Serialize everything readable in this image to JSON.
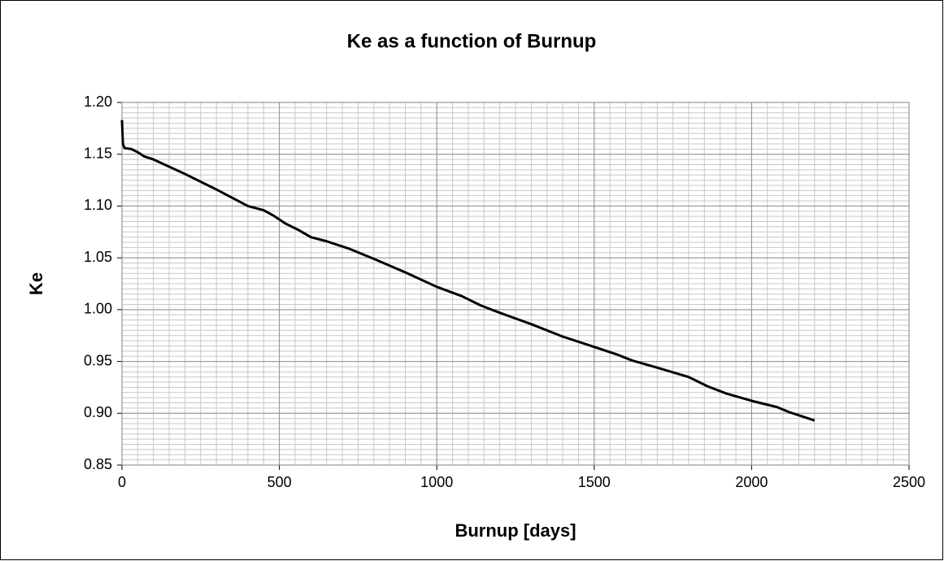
{
  "chart_data": {
    "type": "line",
    "title": "Ke as a function of Burnup",
    "x_label": "Burnup [days]",
    "y_label": "Ke",
    "x": [
      0,
      3,
      8,
      30,
      50,
      70,
      100,
      200,
      300,
      400,
      450,
      480,
      520,
      560,
      600,
      650,
      720,
      800,
      900,
      1000,
      1080,
      1140,
      1200,
      1300,
      1400,
      1500,
      1570,
      1620,
      1700,
      1800,
      1860,
      1920,
      2000,
      2080,
      2120,
      2160,
      2200
    ],
    "series": [
      {
        "name": "Ke",
        "color": "#000000",
        "values": [
          1.183,
          1.16,
          1.156,
          1.155,
          1.152,
          1.148,
          1.145,
          1.131,
          1.116,
          1.1,
          1.096,
          1.091,
          1.083,
          1.077,
          1.07,
          1.066,
          1.059,
          1.049,
          1.036,
          1.022,
          1.013,
          1.004,
          0.997,
          0.986,
          0.974,
          0.964,
          0.957,
          0.951,
          0.944,
          0.935,
          0.926,
          0.919,
          0.912,
          0.906,
          0.901,
          0.897,
          0.893
        ]
      }
    ],
    "xlim": [
      0,
      2500
    ],
    "xticks": [
      0,
      500,
      1000,
      1500,
      2000,
      2500
    ],
    "ylim": [
      0.85,
      1.2
    ],
    "yticks": [
      {
        "value": 0.85,
        "label": "0.85"
      },
      {
        "value": 0.9,
        "label": "0.90"
      },
      {
        "value": 0.95,
        "label": "0.95"
      },
      {
        "value": 1.0,
        "label": "1.00"
      },
      {
        "value": 1.05,
        "label": "1.05"
      },
      {
        "value": 1.1,
        "label": "1.10"
      },
      {
        "value": 1.15,
        "label": "1.15"
      },
      {
        "value": 1.2,
        "label": "1.20"
      }
    ],
    "grid": true,
    "minor_grid": {
      "x": 50,
      "y": 0.005
    }
  }
}
